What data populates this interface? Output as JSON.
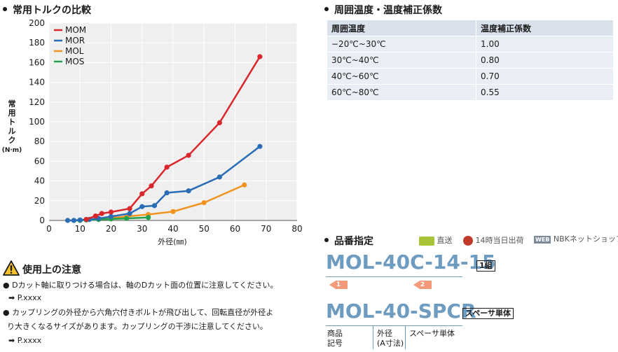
{
  "torque_section": {
    "title": "常用トルクの比較"
  },
  "temp_section": {
    "title": "周囲温度・温度補正係数",
    "headers": [
      "周囲温度",
      "温度補正係数"
    ],
    "rows": [
      [
        "−20℃~30℃",
        "1.00"
      ],
      [
        "30℃~40℃",
        "0.80"
      ],
      [
        "40℃~60℃",
        "0.70"
      ],
      [
        "60℃~80℃",
        "0.55"
      ]
    ]
  },
  "caution": {
    "title": "使用上の注意",
    "items": [
      {
        "text": "Dカット軸に取りつける場合は、軸のDカット面の位置に注意してください。",
        "ref": "P.xxxx"
      },
      {
        "text": "カップリングの外径から六角穴付きボルトが飛び出して、回転直径が外径よ",
        "text2": "り大きくなるサイズがあります。カップリングの干渉に注意してください。",
        "ref": "P.xxxx"
      }
    ]
  },
  "part_section": {
    "title": "品番指定",
    "badges": {
      "direct": "直送",
      "sameday": "14時当日出荷",
      "web_icon": "WEB",
      "nbk": "NBKネットショップ"
    },
    "example": {
      "code1": "MOL-40C",
      "code2": "-",
      "code3": "14-15",
      "box": "1組",
      "tag1": "1",
      "tag2": "2"
    },
    "spacer": {
      "code1": "MOL",
      "code2": "-40-",
      "code3": "SPCR",
      "box": "スペーサ単体"
    },
    "labels": {
      "a1": "商品",
      "a2": "記号",
      "b1": "外径",
      "b2": "(A寸法)",
      "c1": "スペーサ単体"
    }
  },
  "chart_data": {
    "type": "line",
    "title": "",
    "xlabel": "外径(㎜)",
    "ylabel": "常用トルク(N·m)",
    "ylabel_lines": [
      "常",
      "用",
      "ト",
      "ル",
      "ク",
      "(N·m)"
    ],
    "xlim": [
      0,
      80
    ],
    "ylim": [
      0,
      200
    ],
    "xticks": [
      0,
      10,
      20,
      30,
      40,
      50,
      60,
      70,
      80
    ],
    "yticks": [
      0,
      20,
      40,
      60,
      80,
      100,
      120,
      140,
      160,
      180,
      200
    ],
    "grid": true,
    "legend_position": "top-left",
    "series": [
      {
        "name": "MOM",
        "color": "#d9262c",
        "x": [
          12,
          15,
          17,
          20,
          26,
          30,
          33,
          38,
          45,
          55,
          68
        ],
        "y": [
          1,
          4.5,
          7,
          8.5,
          12,
          27,
          35,
          54,
          66,
          99,
          166
        ]
      },
      {
        "name": "MOR",
        "color": "#2a6db5",
        "x": [
          6,
          8,
          10,
          13,
          16,
          20,
          26,
          30,
          34,
          38,
          45,
          55,
          68
        ],
        "y": [
          0,
          0,
          0.5,
          1,
          2,
          4,
          7,
          14,
          15,
          28,
          30,
          44,
          75
        ]
      },
      {
        "name": "MOL",
        "color": "#f0941f",
        "x": [
          12,
          16,
          20,
          25,
          32,
          40,
          50,
          63
        ],
        "y": [
          1,
          1.5,
          2.5,
          4,
          6,
          9,
          18,
          36
        ]
      },
      {
        "name": "MOS",
        "color": "#22a04b",
        "x": [
          8,
          10,
          12,
          16,
          20,
          25,
          32
        ],
        "y": [
          0,
          0,
          0.5,
          1,
          1.5,
          2,
          3
        ]
      }
    ]
  }
}
